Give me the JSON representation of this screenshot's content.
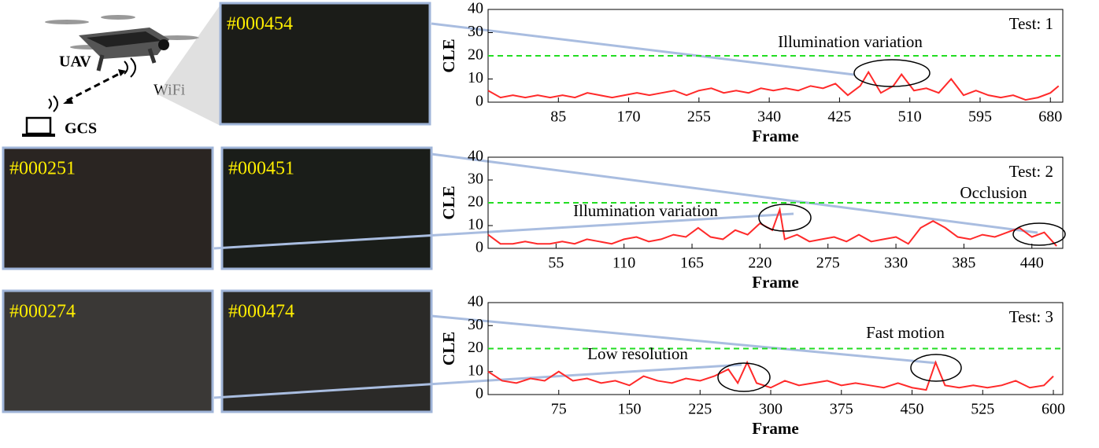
{
  "diagram": {
    "uav": "UAV",
    "wifi": "WiFi",
    "gcs": "GCS",
    "frames": [
      "#000454",
      "#000251",
      "#000451",
      "#000274",
      "#000474"
    ]
  },
  "chart_data": [
    {
      "type": "line",
      "title": "Test: 1",
      "x_label": "Frame",
      "y_label": "CLE",
      "color": "#ff2a2a",
      "threshold": 20,
      "threshold_color": "#22dd22",
      "annotations": [
        "Illumination variation"
      ],
      "xlim": [
        0,
        695
      ],
      "xticks": [
        85,
        170,
        255,
        340,
        425,
        510,
        595,
        680
      ],
      "ylim": [
        0,
        40
      ],
      "yticks": [
        0,
        10,
        20,
        30,
        40
      ],
      "x": [
        0,
        15,
        30,
        45,
        60,
        75,
        90,
        105,
        120,
        135,
        150,
        165,
        180,
        195,
        210,
        225,
        240,
        255,
        270,
        285,
        300,
        315,
        330,
        345,
        360,
        375,
        390,
        405,
        420,
        435,
        450,
        460,
        475,
        490,
        500,
        515,
        530,
        545,
        560,
        575,
        590,
        605,
        620,
        635,
        650,
        665,
        680,
        690
      ],
      "values": [
        5,
        2,
        3,
        2,
        3,
        2,
        3,
        2,
        4,
        3,
        2,
        3,
        4,
        3,
        4,
        5,
        3,
        5,
        6,
        4,
        5,
        4,
        6,
        5,
        6,
        5,
        7,
        6,
        8,
        3,
        7,
        13,
        4,
        7,
        12,
        5,
        6,
        4,
        10,
        3,
        5,
        3,
        2,
        3,
        1,
        2,
        4,
        7
      ]
    },
    {
      "type": "line",
      "title": "Test: 2",
      "x_label": "Frame",
      "y_label": "CLE",
      "color": "#ff2a2a",
      "threshold": 20,
      "threshold_color": "#22dd22",
      "annotations": [
        "Illumination variation",
        "Occlusion"
      ],
      "xlim": [
        0,
        465
      ],
      "xticks": [
        55,
        110,
        165,
        220,
        275,
        330,
        385,
        440
      ],
      "ylim": [
        0,
        40
      ],
      "yticks": [
        0,
        10,
        20,
        30,
        40
      ],
      "x": [
        0,
        10,
        20,
        30,
        40,
        50,
        60,
        70,
        80,
        90,
        100,
        110,
        120,
        130,
        140,
        150,
        160,
        170,
        180,
        190,
        200,
        210,
        220,
        230,
        236,
        240,
        250,
        260,
        270,
        280,
        290,
        300,
        310,
        320,
        330,
        340,
        350,
        360,
        370,
        380,
        390,
        400,
        410,
        420,
        430,
        440,
        450,
        460
      ],
      "values": [
        6,
        2,
        2,
        3,
        2,
        2,
        3,
        2,
        4,
        3,
        2,
        4,
        5,
        3,
        4,
        6,
        5,
        9,
        5,
        4,
        8,
        6,
        11,
        8,
        17,
        4,
        6,
        3,
        4,
        5,
        3,
        6,
        3,
        4,
        5,
        2,
        9,
        12,
        9,
        5,
        4,
        6,
        5,
        7,
        9,
        5,
        7,
        1
      ]
    },
    {
      "type": "line",
      "title": "Test: 3",
      "x_label": "Frame",
      "y_label": "CLE",
      "color": "#ff2a2a",
      "threshold": 20,
      "threshold_color": "#22dd22",
      "annotations": [
        "Low resolution",
        "Fast motion"
      ],
      "xlim": [
        0,
        610
      ],
      "xticks": [
        75,
        150,
        225,
        300,
        375,
        450,
        525,
        600
      ],
      "ylim": [
        0,
        40
      ],
      "yticks": [
        0,
        10,
        20,
        30,
        40
      ],
      "x": [
        0,
        15,
        30,
        45,
        60,
        75,
        90,
        105,
        120,
        135,
        150,
        165,
        180,
        195,
        210,
        225,
        240,
        255,
        265,
        275,
        285,
        300,
        315,
        330,
        345,
        360,
        375,
        390,
        405,
        420,
        435,
        450,
        465,
        475,
        485,
        500,
        515,
        530,
        545,
        560,
        575,
        590,
        600
      ],
      "values": [
        10,
        6,
        5,
        7,
        6,
        10,
        6,
        7,
        5,
        6,
        4,
        8,
        6,
        5,
        7,
        6,
        8,
        11,
        5,
        14,
        5,
        3,
        6,
        4,
        5,
        6,
        4,
        5,
        4,
        3,
        5,
        3,
        2,
        14,
        4,
        3,
        4,
        3,
        4,
        6,
        3,
        4,
        8
      ]
    }
  ]
}
